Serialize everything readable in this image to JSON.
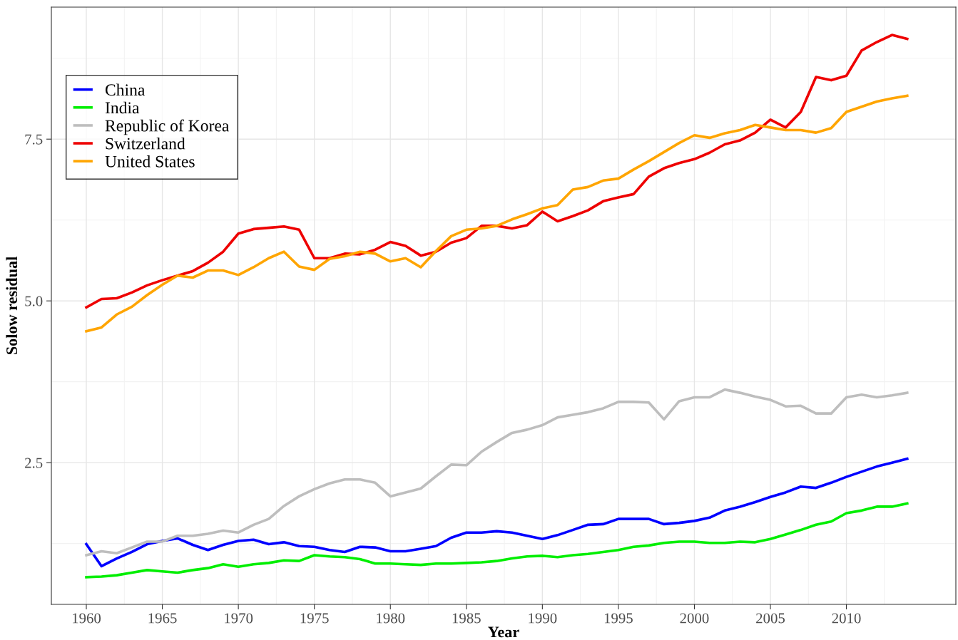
{
  "chart_data": {
    "type": "line",
    "xlabel": "Year",
    "ylabel": "Solow residual",
    "x": [
      1960,
      1961,
      1962,
      1963,
      1964,
      1965,
      1966,
      1967,
      1968,
      1969,
      1970,
      1971,
      1972,
      1973,
      1974,
      1975,
      1976,
      1977,
      1978,
      1979,
      1980,
      1981,
      1982,
      1983,
      1984,
      1985,
      1986,
      1987,
      1988,
      1989,
      1990,
      1991,
      1992,
      1993,
      1994,
      1995,
      1996,
      1997,
      1998,
      1999,
      2000,
      2001,
      2002,
      2003,
      2004,
      2005,
      2006,
      2007,
      2008,
      2009,
      2010,
      2011,
      2012,
      2013,
      2014
    ],
    "series": [
      {
        "name": "China",
        "color": "#0000ff",
        "values": [
          1.24,
          0.9,
          1.02,
          1.12,
          1.24,
          1.29,
          1.33,
          1.23,
          1.15,
          1.23,
          1.29,
          1.31,
          1.24,
          1.27,
          1.21,
          1.2,
          1.15,
          1.12,
          1.2,
          1.19,
          1.13,
          1.13,
          1.17,
          1.21,
          1.34,
          1.42,
          1.42,
          1.44,
          1.42,
          1.37,
          1.32,
          1.38,
          1.46,
          1.54,
          1.55,
          1.63,
          1.63,
          1.63,
          1.55,
          1.57,
          1.6,
          1.65,
          1.76,
          1.82,
          1.89,
          1.97,
          2.04,
          2.13,
          2.11,
          2.19,
          2.28,
          2.36,
          2.44,
          2.5,
          2.56
        ]
      },
      {
        "name": "India",
        "color": "#00ee00",
        "values": [
          0.73,
          0.74,
          0.76,
          0.8,
          0.84,
          0.82,
          0.8,
          0.84,
          0.87,
          0.93,
          0.89,
          0.93,
          0.95,
          0.99,
          0.98,
          1.07,
          1.05,
          1.04,
          1.01,
          0.94,
          0.94,
          0.93,
          0.92,
          0.94,
          0.94,
          0.95,
          0.96,
          0.98,
          1.02,
          1.05,
          1.06,
          1.04,
          1.07,
          1.09,
          1.12,
          1.15,
          1.2,
          1.22,
          1.26,
          1.28,
          1.28,
          1.26,
          1.26,
          1.28,
          1.27,
          1.32,
          1.39,
          1.46,
          1.54,
          1.59,
          1.72,
          1.76,
          1.82,
          1.82,
          1.87
        ]
      },
      {
        "name": "Republic of Korea",
        "color": "#bebebe",
        "values": [
          1.07,
          1.13,
          1.1,
          1.19,
          1.28,
          1.28,
          1.37,
          1.37,
          1.4,
          1.45,
          1.42,
          1.54,
          1.63,
          1.83,
          1.98,
          2.09,
          2.18,
          2.24,
          2.24,
          2.19,
          1.98,
          2.04,
          2.1,
          2.29,
          2.47,
          2.46,
          2.67,
          2.82,
          2.96,
          3.01,
          3.08,
          3.2,
          3.24,
          3.28,
          3.34,
          3.44,
          3.44,
          3.43,
          3.17,
          3.45,
          3.51,
          3.51,
          3.63,
          3.58,
          3.52,
          3.47,
          3.37,
          3.38,
          3.26,
          3.26,
          3.51,
          3.55,
          3.51,
          3.54,
          3.58
        ]
      },
      {
        "name": "Switzerland",
        "color": "#ee0000",
        "values": [
          4.9,
          5.03,
          5.04,
          5.13,
          5.24,
          5.32,
          5.39,
          5.46,
          5.59,
          5.76,
          6.04,
          6.11,
          6.13,
          6.15,
          6.1,
          5.66,
          5.66,
          5.73,
          5.72,
          5.79,
          5.91,
          5.85,
          5.7,
          5.76,
          5.9,
          5.97,
          6.16,
          6.16,
          6.12,
          6.17,
          6.38,
          6.23,
          6.31,
          6.4,
          6.54,
          6.6,
          6.65,
          6.92,
          7.05,
          7.13,
          7.19,
          7.29,
          7.42,
          7.48,
          7.6,
          7.8,
          7.68,
          7.92,
          8.46,
          8.41,
          8.48,
          8.87,
          9.0,
          9.11,
          9.05
        ]
      },
      {
        "name": "United States",
        "color": "#ffa500",
        "values": [
          4.53,
          4.59,
          4.79,
          4.91,
          5.09,
          5.25,
          5.39,
          5.36,
          5.47,
          5.47,
          5.4,
          5.52,
          5.66,
          5.76,
          5.53,
          5.48,
          5.65,
          5.69,
          5.76,
          5.73,
          5.61,
          5.66,
          5.52,
          5.77,
          6.0,
          6.1,
          6.12,
          6.16,
          6.26,
          6.34,
          6.43,
          6.48,
          6.72,
          6.76,
          6.86,
          6.89,
          7.03,
          7.16,
          7.3,
          7.44,
          7.56,
          7.52,
          7.59,
          7.64,
          7.72,
          7.68,
          7.64,
          7.64,
          7.6,
          7.67,
          7.92,
          8.0,
          8.08,
          8.13,
          8.17
        ]
      }
    ],
    "xlim": [
      1957.7,
      2017.2
    ],
    "xticks": [
      1960,
      1965,
      1970,
      1975,
      1980,
      1985,
      1990,
      1995,
      2000,
      2005,
      2010
    ],
    "ylim": [
      0.31,
      9.54
    ],
    "yticks": [
      {
        "value": 2.5,
        "label": "2.5"
      },
      {
        "value": 5.0,
        "label": "5.0"
      },
      {
        "value": 7.5,
        "label": "7.5"
      }
    ],
    "grid": true,
    "legend": "top left",
    "marker": "none",
    "line_style": "solid"
  }
}
